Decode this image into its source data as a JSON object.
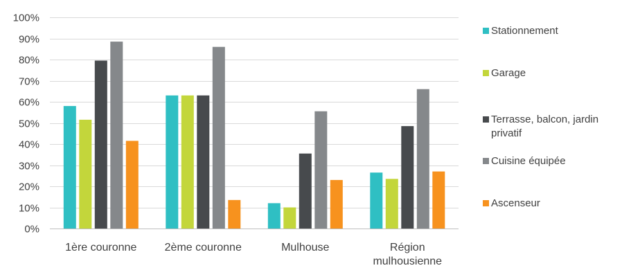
{
  "chart_data": {
    "type": "bar",
    "title": "",
    "xlabel": "",
    "ylabel": "",
    "ylim": [
      0,
      100
    ],
    "y_ticks": [
      "0%",
      "10%",
      "20%",
      "30%",
      "40%",
      "50%",
      "60%",
      "70%",
      "80%",
      "90%",
      "100%"
    ],
    "y_unit": "%",
    "grid": true,
    "legend_position": "right",
    "categories": [
      "1ère couronne",
      "2ème couronne",
      "Mulhouse",
      "Région mulhousienne"
    ],
    "series": [
      {
        "name": "Stationnement",
        "color": "#2fbfc3",
        "values": [
          58,
          63,
          12,
          26.5
        ]
      },
      {
        "name": "Garage",
        "color": "#c3d63b",
        "values": [
          51.5,
          63,
          10,
          23.5
        ]
      },
      {
        "name": "Terrasse, balcon, jardin privatif",
        "color": "#474a4d",
        "values": [
          79.5,
          63,
          35.5,
          48.5
        ]
      },
      {
        "name": "Cuisine équipée",
        "color": "#85888b",
        "values": [
          88.5,
          86,
          55.5,
          66
        ]
      },
      {
        "name": "Ascenseur",
        "color": "#f7921e",
        "values": [
          41.5,
          13.5,
          23,
          27
        ]
      }
    ]
  }
}
